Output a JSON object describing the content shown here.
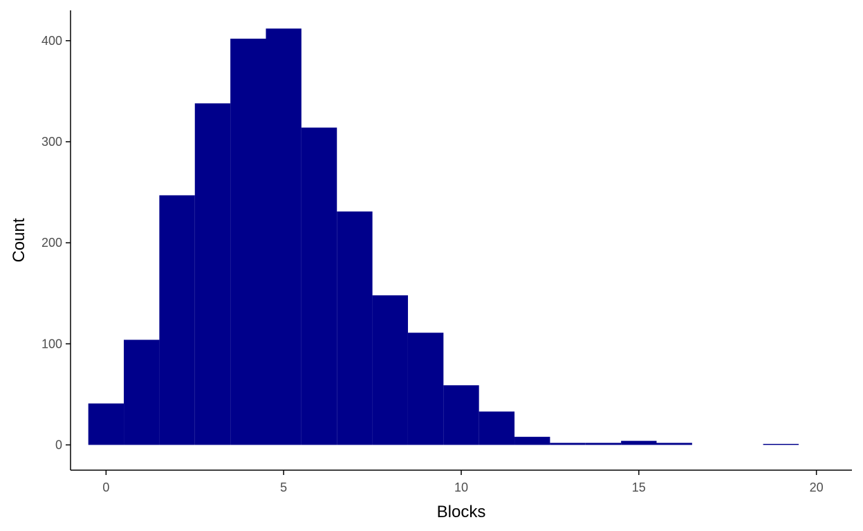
{
  "chart_data": {
    "type": "bar",
    "subtype": "histogram",
    "bin_width": 1,
    "bins": [
      {
        "x": 0,
        "count": 41
      },
      {
        "x": 1,
        "count": 104
      },
      {
        "x": 2,
        "count": 247
      },
      {
        "x": 3,
        "count": 338
      },
      {
        "x": 4,
        "count": 402
      },
      {
        "x": 5,
        "count": 412
      },
      {
        "x": 6,
        "count": 314
      },
      {
        "x": 7,
        "count": 231
      },
      {
        "x": 8,
        "count": 148
      },
      {
        "x": 9,
        "count": 111
      },
      {
        "x": 10,
        "count": 59
      },
      {
        "x": 11,
        "count": 33
      },
      {
        "x": 12,
        "count": 8
      },
      {
        "x": 13,
        "count": 2
      },
      {
        "x": 14,
        "count": 2
      },
      {
        "x": 15,
        "count": 4
      },
      {
        "x": 16,
        "count": 2
      },
      {
        "x": 17,
        "count": 0
      },
      {
        "x": 18,
        "count": 0
      },
      {
        "x": 19,
        "count": 1
      }
    ],
    "xlabel": "Blocks",
    "ylabel": "Count",
    "xlim": [
      -1,
      21
    ],
    "ylim": [
      -25,
      430
    ],
    "x_ticks": [
      0,
      5,
      10,
      15,
      20
    ],
    "y_ticks": [
      0,
      100,
      200,
      300,
      400
    ],
    "bar_color": "#00008B",
    "grid": false,
    "legend": "none"
  }
}
